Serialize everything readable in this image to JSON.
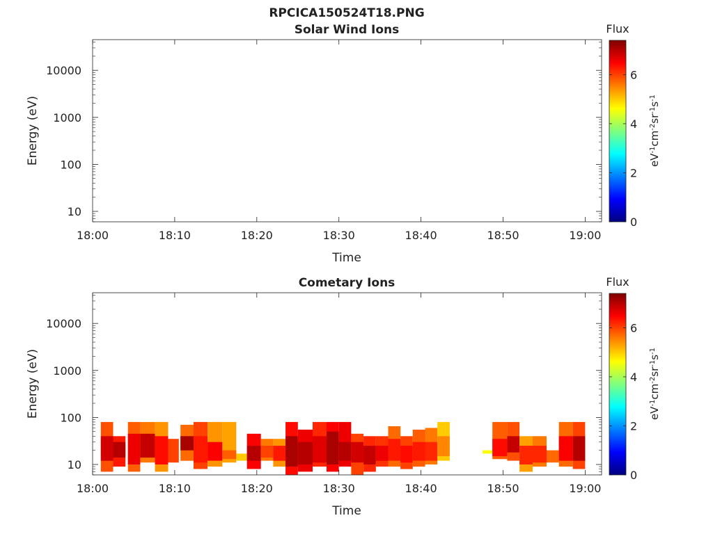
{
  "figure_title": "RPCICA150524T18.PNG",
  "colorbar": {
    "label": "Flux",
    "unit_text": "eV-1cm-2sr-1s-1",
    "range": [
      0,
      7.4
    ],
    "ticks": [
      "0",
      "2",
      "4",
      "6"
    ],
    "tick_values": [
      0,
      2,
      4,
      6
    ],
    "colormap": "jet",
    "colormap_stops": [
      "#00007f",
      "#0000ff",
      "#007fff",
      "#00ffff",
      "#7fff7f",
      "#ffff00",
      "#ff7f00",
      "#ff0000",
      "#7f0000"
    ]
  },
  "chart_data": [
    {
      "type": "heatmap",
      "title": "Solar Wind Ions",
      "xlabel": "Time",
      "ylabel": "Energy (eV)",
      "y_scale": "log",
      "ylim": [
        6,
        45000
      ],
      "xlim": [
        "18:00",
        "19:02"
      ],
      "x_ticks": [
        "18:00",
        "18:10",
        "18:20",
        "18:30",
        "18:40",
        "18:50",
        "19:00"
      ],
      "x_tick_minutes": [
        0,
        10,
        20,
        30,
        40,
        50,
        60
      ],
      "y_ticks": [
        "10",
        "100",
        "1000",
        "10000"
      ],
      "y_tick_values": [
        10,
        100,
        1000,
        10000
      ],
      "cells": []
    },
    {
      "type": "heatmap",
      "title": "Cometary Ions",
      "xlabel": "Time",
      "ylabel": "Energy (eV)",
      "y_scale": "log",
      "ylim": [
        6,
        45000
      ],
      "xlim": [
        "18:00",
        "19:02"
      ],
      "x_ticks": [
        "18:00",
        "18:10",
        "18:20",
        "18:30",
        "18:40",
        "18:50",
        "19:00"
      ],
      "x_tick_minutes": [
        0,
        10,
        20,
        30,
        40,
        50,
        60
      ],
      "y_ticks": [
        "10",
        "100",
        "1000",
        "10000"
      ],
      "y_tick_values": [
        10,
        100,
        1000,
        10000
      ],
      "cells_format": "[start_min, end_min, e_low_eV, e_high_eV, flux]",
      "cells": [
        [
          1.0,
          2.5,
          7,
          80,
          5.9
        ],
        [
          1.0,
          2.5,
          12,
          40,
          6.8
        ],
        [
          2.5,
          4.0,
          9,
          40,
          6.3
        ],
        [
          2.5,
          4.0,
          14,
          30,
          7.0
        ],
        [
          4.3,
          5.8,
          7,
          80,
          5.8
        ],
        [
          4.3,
          5.8,
          10,
          45,
          6.6
        ],
        [
          5.8,
          7.6,
          11,
          80,
          5.6
        ],
        [
          5.8,
          7.6,
          14,
          45,
          6.9
        ],
        [
          7.6,
          9.2,
          7,
          80,
          5.4
        ],
        [
          7.6,
          9.2,
          10,
          40,
          6.4
        ],
        [
          9.2,
          10.5,
          11,
          35,
          6.0
        ],
        [
          10.7,
          12.3,
          12,
          70,
          5.7
        ],
        [
          10.7,
          12.3,
          20,
          40,
          7.1
        ],
        [
          12.3,
          14.0,
          8,
          80,
          6.0
        ],
        [
          12.3,
          14.0,
          11,
          40,
          6.3
        ],
        [
          14.0,
          15.8,
          9,
          80,
          5.4
        ],
        [
          14.0,
          15.8,
          12,
          30,
          6.5
        ],
        [
          15.8,
          17.5,
          11,
          80,
          5.3
        ],
        [
          15.8,
          17.5,
          13,
          20,
          5.8
        ],
        [
          17.5,
          18.8,
          12,
          17,
          5.0
        ],
        [
          18.8,
          20.5,
          8,
          45,
          6.5
        ],
        [
          18.8,
          20.5,
          12,
          25,
          7.0
        ],
        [
          20.5,
          22.0,
          12,
          35,
          5.6
        ],
        [
          20.5,
          22.0,
          14,
          25,
          6.0
        ],
        [
          22.0,
          23.5,
          9,
          35,
          5.4
        ],
        [
          22.0,
          23.5,
          12,
          25,
          6.3
        ],
        [
          23.5,
          25.0,
          6,
          80,
          6.4
        ],
        [
          23.5,
          25.0,
          9,
          40,
          7.1
        ],
        [
          25.0,
          26.8,
          7,
          55,
          6.6
        ],
        [
          25.0,
          26.8,
          10,
          30,
          7.0
        ],
        [
          26.8,
          28.5,
          9,
          80,
          6.2
        ],
        [
          26.8,
          28.5,
          11,
          40,
          6.7
        ],
        [
          28.5,
          30.0,
          7,
          80,
          6.5
        ],
        [
          28.5,
          30.0,
          10,
          50,
          7.1
        ],
        [
          30.0,
          31.5,
          9,
          80,
          6.6
        ],
        [
          30.0,
          31.5,
          12,
          30,
          7.0
        ],
        [
          31.5,
          33.0,
          6,
          45,
          6.0
        ],
        [
          31.5,
          33.0,
          11,
          30,
          6.8
        ],
        [
          33.0,
          34.5,
          7,
          40,
          6.2
        ],
        [
          33.0,
          34.5,
          10,
          25,
          6.9
        ],
        [
          34.5,
          36.0,
          9,
          40,
          6.1
        ],
        [
          34.5,
          36.0,
          12,
          25,
          6.6
        ],
        [
          36.0,
          37.5,
          9,
          65,
          5.7
        ],
        [
          36.0,
          37.5,
          12,
          35,
          6.3
        ],
        [
          37.5,
          39.0,
          8,
          40,
          6.0
        ],
        [
          37.5,
          39.0,
          11,
          25,
          6.4
        ],
        [
          39.0,
          40.5,
          9,
          55,
          5.8
        ],
        [
          39.0,
          40.5,
          12,
          30,
          6.3
        ],
        [
          40.5,
          42.0,
          10,
          60,
          5.6
        ],
        [
          40.5,
          42.0,
          12,
          30,
          6.2
        ],
        [
          42.0,
          43.5,
          12,
          80,
          5.0
        ],
        [
          42.0,
          43.5,
          15,
          40,
          5.5
        ],
        [
          47.5,
          48.7,
          17,
          20,
          4.6
        ],
        [
          48.7,
          50.5,
          13,
          80,
          5.8
        ],
        [
          48.7,
          50.5,
          15,
          35,
          6.4
        ],
        [
          50.5,
          52.0,
          12,
          80,
          5.9
        ],
        [
          50.5,
          52.0,
          18,
          40,
          6.9
        ],
        [
          52.0,
          53.6,
          7,
          40,
          5.3
        ],
        [
          52.0,
          53.6,
          10,
          25,
          6.2
        ],
        [
          53.6,
          55.3,
          9,
          40,
          5.6
        ],
        [
          53.6,
          55.3,
          11,
          25,
          6.2
        ],
        [
          55.3,
          56.8,
          11,
          20,
          5.7
        ],
        [
          56.8,
          58.5,
          9,
          80,
          5.7
        ],
        [
          56.8,
          58.5,
          12,
          40,
          6.5
        ],
        [
          58.5,
          60.0,
          8,
          80,
          6.0
        ],
        [
          58.5,
          60.0,
          12,
          40,
          7.0
        ]
      ]
    }
  ]
}
